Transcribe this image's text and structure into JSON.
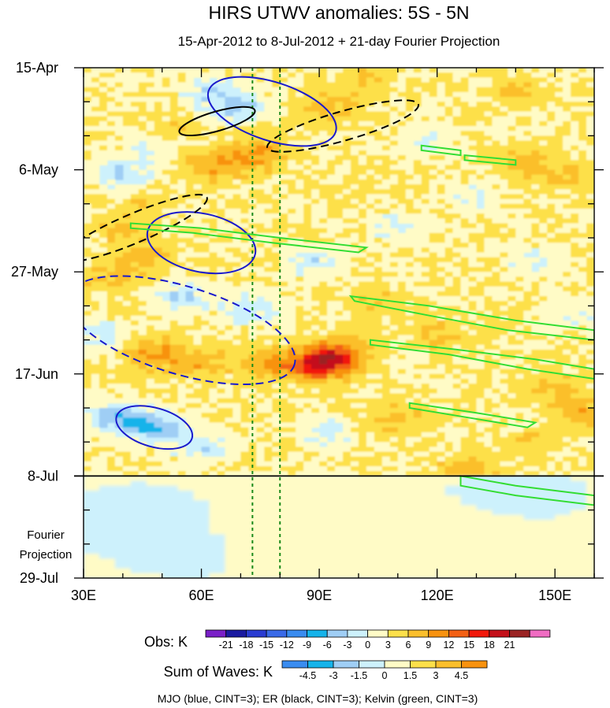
{
  "chart_data": {
    "type": "heatmap",
    "title": "HIRS UTWV anomalies: 5S - 5N",
    "subtitle": "15-Apr-2012 to 8-Jul-2012 + 21-day Fourier Projection",
    "x_axis": {
      "units": "longitude (degrees E)",
      "range": [
        30,
        160
      ],
      "ticks": [
        30,
        60,
        90,
        120,
        150
      ],
      "tick_labels": [
        "30E",
        "60E",
        "90E",
        "120E",
        "150E"
      ],
      "minor_step": 10
    },
    "y_axis": {
      "units": "day index from 15-Apr-2012 (downward)",
      "range": [
        0,
        105
      ],
      "ticks": [
        0,
        21,
        42,
        63,
        84,
        105
      ],
      "tick_labels": [
        "15-Apr",
        "6-May",
        "27-May",
        "17-Jun",
        "8-Jul",
        "29-Jul"
      ],
      "minor_step": 7
    },
    "projection_label": [
      "Fourier",
      "Projection"
    ],
    "observation_end_day": 84,
    "reference_longitudes": [
      73,
      80
    ],
    "anomaly_centers": [
      {
        "lon": 37,
        "day": 43,
        "value": 4
      },
      {
        "lon": 46,
        "day": 39,
        "value": 4
      },
      {
        "lon": 52,
        "day": 13,
        "value": 3
      },
      {
        "lon": 64,
        "day": 20,
        "value": 6
      },
      {
        "lon": 75,
        "day": 18,
        "value": 6
      },
      {
        "lon": 72,
        "day": 11,
        "value": 3
      },
      {
        "lon": 93,
        "day": 8,
        "value": 4
      },
      {
        "lon": 102,
        "day": 2,
        "value": 3
      },
      {
        "lon": 48,
        "day": 59,
        "value": 7
      },
      {
        "lon": 60,
        "day": 61,
        "value": 5
      },
      {
        "lon": 78,
        "day": 61,
        "value": 6
      },
      {
        "lon": 90,
        "day": 61,
        "value": 14
      },
      {
        "lon": 95,
        "day": 59,
        "value": 9
      },
      {
        "lon": 142,
        "day": 20,
        "value": 4
      },
      {
        "lon": 155,
        "day": 22,
        "value": 4
      },
      {
        "lon": 140,
        "day": 5,
        "value": 3
      },
      {
        "lon": 150,
        "day": 66,
        "value": 4
      },
      {
        "lon": 157,
        "day": 71,
        "value": 5
      },
      {
        "lon": 110,
        "day": 72,
        "value": 4
      },
      {
        "lon": 128,
        "day": 83,
        "value": 5
      },
      {
        "lon": 145,
        "day": 77,
        "value": 3
      },
      {
        "lon": 105,
        "day": 48,
        "value": 3
      },
      {
        "lon": 120,
        "day": 55,
        "value": 3
      },
      {
        "lon": 45,
        "day": 28,
        "value": 3
      },
      {
        "lon": 40,
        "day": 33,
        "value": 3
      },
      {
        "lon": 40,
        "day": 22,
        "value": -6
      },
      {
        "lon": 48,
        "day": 16,
        "value": -4
      },
      {
        "lon": 70,
        "day": 9,
        "value": -8
      },
      {
        "lon": 62,
        "day": 5,
        "value": -5
      },
      {
        "lon": 38,
        "day": 72,
        "value": -8
      },
      {
        "lon": 48,
        "day": 74,
        "value": -9
      },
      {
        "lon": 60,
        "day": 78,
        "value": -5
      },
      {
        "lon": 55,
        "day": 47,
        "value": -6
      },
      {
        "lon": 72,
        "day": 50,
        "value": -5
      },
      {
        "lon": 88,
        "day": 40,
        "value": -5
      },
      {
        "lon": 110,
        "day": 33,
        "value": -4
      },
      {
        "lon": 130,
        "day": 27,
        "value": -3
      },
      {
        "lon": 145,
        "day": 40,
        "value": -4
      },
      {
        "lon": 92,
        "day": 75,
        "value": -4
      },
      {
        "lon": 35,
        "day": 55,
        "value": -4
      },
      {
        "lon": 115,
        "day": 15,
        "value": -3
      },
      {
        "lon": 155,
        "day": 50,
        "value": -3
      }
    ],
    "projection_centers": [
      {
        "lon": 45,
        "day": 92,
        "value": -0.8
      },
      {
        "lon": 80,
        "day": 95,
        "value": 0.6
      },
      {
        "lon": 120,
        "day": 100,
        "value": 0.5
      },
      {
        "lon": 140,
        "day": 88,
        "value": -0.7
      },
      {
        "lon": 60,
        "day": 100,
        "value": -0.6
      }
    ],
    "wave_contours": [
      {
        "wave": "MJO",
        "color": "#1a1acc",
        "dashed": false,
        "center": [
          60,
          36
        ],
        "radii": [
          14,
          6
        ],
        "angle_deg": 12,
        "extent_lon": [
          43,
          77
        ],
        "extent_day": [
          32,
          41
        ]
      },
      {
        "wave": "MJO",
        "color": "#1a1acc",
        "dashed": false,
        "center": [
          48,
          74
        ],
        "radii": [
          10,
          4
        ],
        "angle_deg": 16,
        "extent_lon": [
          36,
          61
        ],
        "extent_day": [
          70,
          79
        ]
      },
      {
        "wave": "MJO",
        "color": "#1a1acc",
        "dashed": false,
        "center": [
          78,
          9
        ],
        "radii": [
          17,
          6
        ],
        "angle_deg": 18,
        "extent_lon": [
          55,
          98
        ],
        "extent_day": [
          3,
          15
        ]
      },
      {
        "wave": "MJO",
        "color": "#1a1acc",
        "dashed": true,
        "center": [
          55,
          54
        ],
        "radii": [
          30,
          9
        ],
        "angle_deg": 17,
        "extent_lon": [
          35,
          87
        ],
        "extent_day": [
          45,
          64
        ]
      },
      {
        "wave": "ER",
        "color": "#000000",
        "dashed": false,
        "center": [
          64,
          11
        ],
        "radii": [
          10,
          2
        ],
        "angle_deg": -16,
        "extent_lon": [
          55,
          76
        ],
        "extent_day": [
          8,
          14
        ]
      },
      {
        "wave": "ER",
        "color": "#000000",
        "dashed": true,
        "center": [
          96,
          12
        ],
        "radii": [
          20,
          3
        ],
        "angle_deg": -16,
        "extent_lon": [
          75,
          113
        ],
        "extent_day": [
          7,
          19
        ]
      },
      {
        "wave": "ER",
        "color": "#000000",
        "dashed": true,
        "center": [
          43,
          33
        ],
        "radii": [
          20,
          3
        ],
        "angle_deg": -23,
        "extent_lon": [
          30,
          66
        ],
        "extent_day": [
          28,
          42
        ]
      },
      {
        "wave": "Kelvin",
        "color": "#33dd33",
        "dashed": false,
        "path": [
          [
            42,
            32
          ],
          [
            60,
            33
          ],
          [
            80,
            35
          ],
          [
            102,
            37
          ],
          [
            100,
            38
          ],
          [
            78,
            36
          ],
          [
            58,
            34
          ],
          [
            42,
            33
          ]
        ]
      },
      {
        "wave": "Kelvin",
        "color": "#33dd33",
        "dashed": false,
        "path": [
          [
            98,
            47
          ],
          [
            118,
            49
          ],
          [
            140,
            52
          ],
          [
            160,
            54
          ],
          [
            160,
            56
          ],
          [
            138,
            54
          ],
          [
            118,
            51
          ],
          [
            99,
            48
          ]
        ]
      },
      {
        "wave": "Kelvin",
        "color": "#33dd33",
        "dashed": false,
        "path": [
          [
            103,
            56
          ],
          [
            125,
            58
          ],
          [
            145,
            60
          ],
          [
            160,
            62
          ],
          [
            160,
            64
          ],
          [
            143,
            62
          ],
          [
            123,
            59
          ],
          [
            103,
            57
          ]
        ]
      },
      {
        "wave": "Kelvin",
        "color": "#33dd33",
        "dashed": false,
        "path": [
          [
            113,
            69
          ],
          [
            130,
            71
          ],
          [
            145,
            73
          ],
          [
            143,
            74
          ],
          [
            128,
            72
          ],
          [
            113,
            70
          ]
        ]
      },
      {
        "wave": "Kelvin",
        "color": "#33dd33",
        "dashed": false,
        "path": [
          [
            116,
            16
          ],
          [
            126,
            17
          ],
          [
            126,
            18
          ],
          [
            116,
            17
          ]
        ]
      },
      {
        "wave": "Kelvin",
        "color": "#33dd33",
        "dashed": false,
        "path": [
          [
            127,
            18
          ],
          [
            140,
            19
          ],
          [
            140,
            20
          ],
          [
            127,
            19
          ]
        ]
      },
      {
        "wave": "Kelvin",
        "color": "#33dd33",
        "dashed": false,
        "path": [
          [
            126,
            84
          ],
          [
            140,
            86
          ],
          [
            160,
            88
          ],
          [
            160,
            90
          ],
          [
            140,
            88
          ],
          [
            126,
            86
          ]
        ]
      }
    ],
    "obs_colorbar": {
      "label": "Obs: K",
      "colors": [
        "#7a20c8",
        "#1a1aa0",
        "#2a3cd2",
        "#3a6ae8",
        "#3a8cf0",
        "#15b3ea",
        "#9fcef5",
        "#cdf1fc",
        "#fffbc6",
        "#fde04a",
        "#fbbf2c",
        "#f8920f",
        "#f36014",
        "#f2190c",
        "#c4101a",
        "#9b2424",
        "#f06cc3"
      ],
      "tick_labels": [
        "-21",
        "-18",
        "-15",
        "-12",
        "-9",
        "-6",
        "-3",
        "0",
        "3",
        "6",
        "9",
        "12",
        "15",
        "18",
        "21"
      ]
    },
    "waves_colorbar": {
      "label": "Sum of Waves: K",
      "colors": [
        "#3a8cf0",
        "#15b3ea",
        "#9fcef5",
        "#cdf1fc",
        "#fffbc6",
        "#fde04a",
        "#fbbf2c",
        "#f8920f"
      ],
      "tick_labels": [
        "-4.5",
        "-3",
        "-1.5",
        "0",
        "1.5",
        "3",
        "4.5"
      ]
    },
    "legend_text": "MJO (blue, CINT=3); ER (black, CINT=3); Kelvin (green, CINT=3)"
  }
}
